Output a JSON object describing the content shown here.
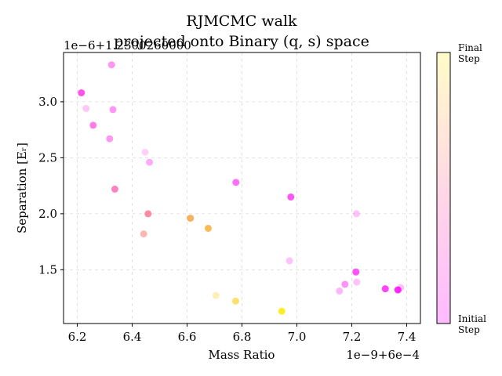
{
  "chart_data": {
    "type": "scatter",
    "title_line1": "RJMCMC walk",
    "title_line2": "projected onto Binary (q, s) space",
    "xlabel": "Mass Ratio",
    "ylabel": "Separation [Eᵣ]",
    "x_offset_text": "1e−9+6e−4",
    "y_offset_text": "1e−6+1.2300260000",
    "xlim": [
      6.15,
      7.45
    ],
    "ylim": [
      1.02,
      3.44
    ],
    "x_ticks": [
      6.2,
      6.4,
      6.6,
      6.8,
      7.0,
      7.2,
      7.4
    ],
    "x_tick_labels": [
      "6.2",
      "6.4",
      "6.6",
      "6.8",
      "7.0",
      "7.2",
      "7.4"
    ],
    "y_ticks": [
      1.5,
      2.0,
      2.5,
      3.0
    ],
    "y_tick_labels": [
      "1.5",
      "2.0",
      "2.5",
      "3.0"
    ],
    "grid": true,
    "colorbar": {
      "top_label_line1": "Final",
      "top_label_line2": "Step",
      "bottom_label_line1": "Initial",
      "bottom_label_line2": "Step",
      "colormap": "spring",
      "colors": [
        "#ff00ff",
        "#ff80c0",
        "#ffff00"
      ]
    },
    "points": [
      {
        "x": 6.215,
        "y": 3.08,
        "c": 0.1,
        "a": 0.75
      },
      {
        "x": 6.232,
        "y": 2.94,
        "c": 0.1,
        "a": 0.25
      },
      {
        "x": 6.258,
        "y": 2.79,
        "c": 0.15,
        "a": 0.6
      },
      {
        "x": 6.318,
        "y": 2.67,
        "c": 0.1,
        "a": 0.45
      },
      {
        "x": 6.325,
        "y": 3.33,
        "c": 0.08,
        "a": 0.45
      },
      {
        "x": 6.33,
        "y": 2.93,
        "c": 0.08,
        "a": 0.45
      },
      {
        "x": 6.337,
        "y": 2.22,
        "c": 0.3,
        "a": 0.7
      },
      {
        "x": 6.442,
        "y": 1.82,
        "c": 0.45,
        "a": 0.5
      },
      {
        "x": 6.447,
        "y": 2.55,
        "c": 0.08,
        "a": 0.2
      },
      {
        "x": 6.458,
        "y": 2.0,
        "c": 0.4,
        "a": 0.75
      },
      {
        "x": 6.463,
        "y": 2.46,
        "c": 0.05,
        "a": 0.35
      },
      {
        "x": 6.612,
        "y": 1.96,
        "c": 0.6,
        "a": 0.75
      },
      {
        "x": 6.677,
        "y": 1.87,
        "c": 0.65,
        "a": 0.75
      },
      {
        "x": 6.705,
        "y": 1.27,
        "c": 0.85,
        "a": 0.3
      },
      {
        "x": 6.778,
        "y": 2.28,
        "c": 0.05,
        "a": 0.6
      },
      {
        "x": 6.777,
        "y": 1.22,
        "c": 0.85,
        "a": 0.6
      },
      {
        "x": 6.945,
        "y": 1.13,
        "c": 1.0,
        "a": 0.85
      },
      {
        "x": 6.973,
        "y": 1.58,
        "c": 0.05,
        "a": 0.25
      },
      {
        "x": 6.978,
        "y": 2.15,
        "c": 0.05,
        "a": 0.7
      },
      {
        "x": 7.155,
        "y": 1.31,
        "c": 0.05,
        "a": 0.3
      },
      {
        "x": 7.175,
        "y": 1.37,
        "c": 0.05,
        "a": 0.45
      },
      {
        "x": 7.215,
        "y": 1.48,
        "c": 0.03,
        "a": 0.7
      },
      {
        "x": 7.217,
        "y": 2.0,
        "c": 0.05,
        "a": 0.25
      },
      {
        "x": 7.218,
        "y": 1.39,
        "c": 0.05,
        "a": 0.25
      },
      {
        "x": 7.322,
        "y": 1.33,
        "c": 0.02,
        "a": 0.75
      },
      {
        "x": 7.368,
        "y": 1.32,
        "c": 0.02,
        "a": 0.85
      },
      {
        "x": 7.378,
        "y": 1.34,
        "c": 0.02,
        "a": 0.25
      }
    ]
  }
}
